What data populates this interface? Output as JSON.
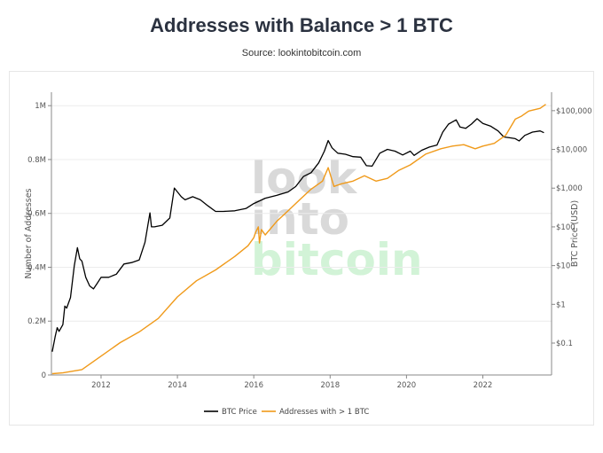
{
  "title": "Addresses with Balance > 1 BTC",
  "source": "Source: lookintobitcoin.com",
  "watermark": {
    "line1": "look",
    "line2": "into",
    "line3": "bitcoin"
  },
  "chart_data": {
    "type": "line",
    "title": "Addresses with Balance > 1 BTC",
    "xlabel": "",
    "ylabel_left": "Number of Addresses",
    "ylabel_right": "BTC Price (USD)",
    "x_ticks": [
      "2012",
      "2014",
      "2016",
      "2018",
      "2020",
      "2022"
    ],
    "xlim": [
      2010.7,
      2023.8
    ],
    "y_left": {
      "lim": [
        0,
        1050000
      ],
      "ticks": [
        0,
        200000,
        400000,
        600000,
        800000,
        1000000
      ],
      "tick_labels": [
        "0",
        "0.2M",
        "0.4M",
        "0.6M",
        "0.8M",
        "1M"
      ]
    },
    "y_right": {
      "scale": "log",
      "lim": [
        0.015,
        300000
      ],
      "ticks": [
        0.1,
        1,
        10,
        100,
        1000,
        10000,
        100000
      ],
      "tick_labels": [
        "$0.1",
        "$1",
        "$10",
        "$100",
        "$1,000",
        "$10,000",
        "$100,000"
      ]
    },
    "legend": [
      "BTC Price",
      "Addresses with > 1 BTC"
    ],
    "legend_position": "bottom",
    "series": [
      {
        "name": "BTC Price",
        "axis": "right",
        "color": "#000000",
        "x": [
          2010.72,
          2010.8,
          2010.85,
          2010.9,
          2011.0,
          2011.05,
          2011.1,
          2011.2,
          2011.3,
          2011.38,
          2011.44,
          2011.5,
          2011.6,
          2011.7,
          2011.8,
          2011.9,
          2012.0,
          2012.2,
          2012.4,
          2012.6,
          2012.8,
          2013.0,
          2013.15,
          2013.28,
          2013.32,
          2013.4,
          2013.6,
          2013.8,
          2013.92,
          2014.0,
          2014.1,
          2014.2,
          2014.4,
          2014.6,
          2014.8,
          2015.0,
          2015.2,
          2015.5,
          2015.8,
          2016.0,
          2016.3,
          2016.6,
          2016.9,
          2017.1,
          2017.3,
          2017.5,
          2017.7,
          2017.85,
          2017.95,
          2018.05,
          2018.2,
          2018.4,
          2018.6,
          2018.8,
          2018.95,
          2019.1,
          2019.3,
          2019.5,
          2019.7,
          2019.9,
          2020.1,
          2020.2,
          2020.4,
          2020.6,
          2020.8,
          2020.95,
          2021.1,
          2021.3,
          2021.4,
          2021.55,
          2021.7,
          2021.85,
          2022.0,
          2022.2,
          2022.4,
          2022.55,
          2022.7,
          2022.85,
          2022.95,
          2023.1,
          2023.3,
          2023.5,
          2023.6
        ],
        "values": [
          0.06,
          0.15,
          0.25,
          0.2,
          0.3,
          0.9,
          0.8,
          1.5,
          10,
          29,
          15,
          13,
          5,
          3,
          2.5,
          3.5,
          5,
          5,
          6,
          11,
          12,
          14,
          40,
          230,
          100,
          100,
          110,
          170,
          1000,
          800,
          600,
          500,
          600,
          500,
          350,
          250,
          250,
          260,
          300,
          400,
          550,
          650,
          800,
          1100,
          2000,
          2500,
          4500,
          9000,
          17000,
          11000,
          8000,
          7500,
          6500,
          6300,
          3800,
          3700,
          8000,
          10000,
          9000,
          7200,
          9000,
          7000,
          9500,
          11500,
          13000,
          28000,
          45000,
          58000,
          38000,
          35000,
          45000,
          62000,
          47000,
          40000,
          30000,
          21000,
          20000,
          19000,
          16500,
          23000,
          28000,
          30000,
          27000
        ]
      },
      {
        "name": "Addresses with > 1 BTC",
        "axis": "left",
        "color": "#f09a1a",
        "x": [
          2010.72,
          2011.0,
          2011.5,
          2012.0,
          2012.5,
          2013.0,
          2013.5,
          2014.0,
          2014.5,
          2015.0,
          2015.5,
          2015.85,
          2016.0,
          2016.05,
          2016.12,
          2016.15,
          2016.2,
          2016.3,
          2016.6,
          2016.9,
          2017.2,
          2017.5,
          2017.8,
          2017.95,
          2018.1,
          2018.3,
          2018.6,
          2018.9,
          2019.2,
          2019.5,
          2019.8,
          2020.1,
          2020.5,
          2020.9,
          2021.2,
          2021.5,
          2021.8,
          2022.0,
          2022.3,
          2022.6,
          2022.85,
          2023.0,
          2023.2,
          2023.5,
          2023.65
        ],
        "values": [
          5000,
          8000,
          20000,
          70000,
          120000,
          160000,
          210000,
          290000,
          350000,
          390000,
          440000,
          480000,
          510000,
          530000,
          550000,
          490000,
          540000,
          520000,
          570000,
          610000,
          650000,
          690000,
          720000,
          770000,
          700000,
          710000,
          720000,
          740000,
          720000,
          730000,
          760000,
          780000,
          820000,
          840000,
          850000,
          855000,
          840000,
          850000,
          860000,
          890000,
          950000,
          960000,
          980000,
          990000,
          1005000
        ]
      }
    ]
  }
}
